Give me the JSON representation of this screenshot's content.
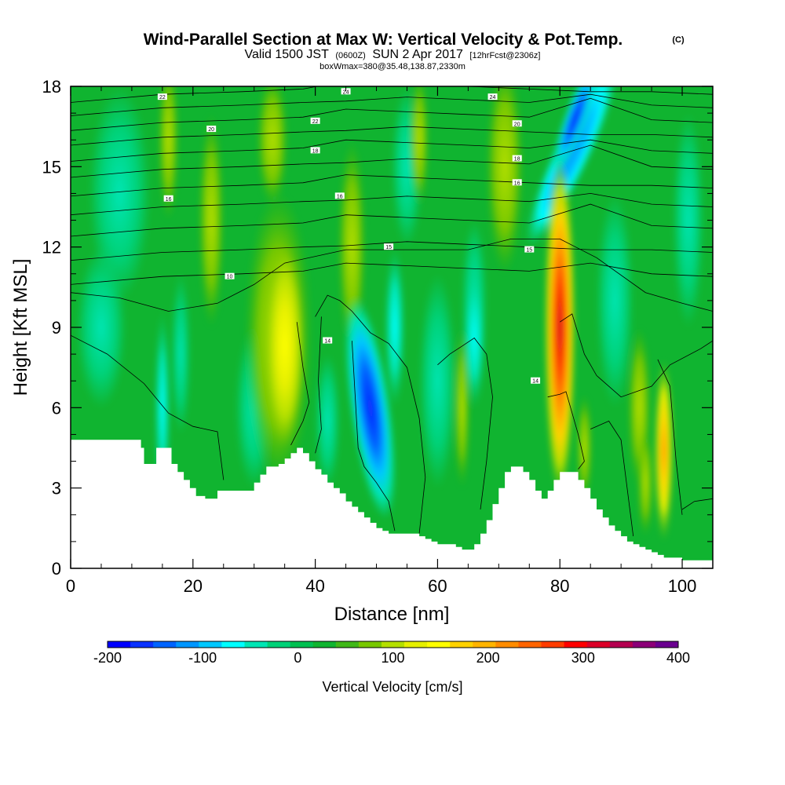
{
  "title": {
    "main": "Wind-Parallel Section at Max W: Vertical Velocity & Pot.Temp.",
    "main_suffix": "(C)",
    "line2_a": "Valid 1500 JST",
    "line2_b": "(0600Z)",
    "line2_c": "SUN 2 Apr 2017",
    "line2_d": "[12hrFcst@2306z]",
    "line3": "boxWmax=380@35.48,138.87,2330m"
  },
  "chart_data": {
    "type": "heatmap",
    "title": "Wind-Parallel Section at Max W: Vertical Velocity & Pot.Temp.",
    "xlabel": "Distance [nm]",
    "ylabel": "Height [Kft MSL]",
    "xlim": [
      0,
      105
    ],
    "ylim": [
      0,
      18
    ],
    "xticks": [
      0,
      20,
      40,
      60,
      80,
      100
    ],
    "xtick_labels": [
      "0",
      "20",
      "40",
      "60",
      "80",
      "100"
    ],
    "yticks": [
      0,
      3,
      6,
      9,
      12,
      15,
      18
    ],
    "ytick_labels": [
      "0",
      "3",
      "6",
      "9",
      "12",
      "15",
      "18"
    ],
    "colorbar": {
      "title": "Vertical Velocity [cm/s]",
      "min": -200,
      "max": 400,
      "tick_values": [
        -200,
        -100,
        0,
        100,
        200,
        300,
        400
      ],
      "tick_labels": [
        "-200",
        "-100",
        "0",
        "100",
        "200",
        "300",
        "400"
      ],
      "colors": [
        "#0000ff",
        "#0a32ff",
        "#0064ff",
        "#0096ff",
        "#00c8ff",
        "#00ffff",
        "#00e6b4",
        "#00d278",
        "#00c050",
        "#10b430",
        "#40b818",
        "#78c800",
        "#b4e000",
        "#e6f000",
        "#ffff00",
        "#ffd200",
        "#ffb400",
        "#ff8c00",
        "#ff6400",
        "#ff3c00",
        "#ff0000",
        "#dc0028",
        "#b40050",
        "#8c0078",
        "#6a0090"
      ]
    },
    "extrema": [
      {
        "sign": "min",
        "x": 49,
        "y": 5.5,
        "value": -190
      },
      {
        "sign": "max",
        "x": 80,
        "y": 9.5,
        "value": 330
      },
      {
        "sign": "max",
        "x": 35,
        "y": 8.3,
        "value": 110
      },
      {
        "sign": "max",
        "x": 97,
        "y": 4.3,
        "value": 210
      },
      {
        "sign": "min",
        "x": 82,
        "y": 16.5,
        "value": -110
      },
      {
        "sign": "min",
        "x": 15,
        "y": 5.7,
        "value": -70
      }
    ],
    "terrain": {
      "x": [
        0,
        11,
        11.5,
        12,
        13.5,
        14,
        15.5,
        16.5,
        17.5,
        18.5,
        19.5,
        20.5,
        22,
        24,
        26,
        29,
        30,
        31,
        32,
        34,
        35,
        36,
        37,
        38,
        39,
        40,
        41,
        42,
        43,
        44,
        45,
        46,
        47,
        48,
        49,
        50,
        51,
        52,
        53,
        54,
        55,
        56,
        57,
        58,
        59,
        60,
        61,
        62,
        63,
        64,
        65,
        66,
        67,
        68,
        69,
        70,
        71,
        72,
        73,
        74,
        75,
        76,
        77,
        78,
        79,
        80,
        81,
        82,
        83,
        84,
        85,
        86,
        87,
        88,
        89,
        90,
        91,
        92,
        93,
        94,
        95,
        96,
        97,
        98,
        99,
        100,
        101,
        102,
        103,
        104,
        105
      ],
      "y": [
        4.8,
        4.8,
        4.5,
        3.9,
        3.9,
        4.5,
        4.5,
        3.9,
        3.6,
        3.3,
        3.0,
        2.7,
        2.6,
        2.9,
        2.9,
        2.9,
        3.2,
        3.5,
        3.8,
        3.9,
        4.1,
        4.3,
        4.5,
        4.3,
        4.0,
        3.7,
        3.5,
        3.2,
        3.0,
        2.8,
        2.5,
        2.3,
        2.1,
        1.9,
        1.7,
        1.5,
        1.4,
        1.3,
        1.3,
        1.3,
        1.3,
        1.3,
        1.2,
        1.1,
        1.0,
        0.9,
        0.9,
        0.9,
        0.8,
        0.7,
        0.7,
        0.9,
        1.3,
        1.8,
        2.4,
        3.0,
        3.6,
        3.8,
        3.8,
        3.6,
        3.3,
        2.9,
        2.6,
        2.9,
        3.3,
        3.6,
        3.6,
        3.6,
        3.3,
        3.0,
        2.6,
        2.2,
        1.9,
        1.6,
        1.4,
        1.2,
        1.0,
        0.9,
        0.8,
        0.7,
        0.6,
        0.5,
        0.4,
        0.4,
        0.4,
        0.3,
        0.3,
        0.3,
        0.3,
        0.3,
        0.3
      ]
    },
    "contour_labels": [
      {
        "text": "24",
        "x": 45,
        "y": 17.8
      },
      {
        "text": "24",
        "x": 69,
        "y": 17.6
      },
      {
        "text": "22",
        "x": 15,
        "y": 17.6
      },
      {
        "text": "22",
        "x": 40,
        "y": 16.7
      },
      {
        "text": "20",
        "x": 23,
        "y": 16.4
      },
      {
        "text": "20",
        "x": 73,
        "y": 16.6
      },
      {
        "text": "18",
        "x": 40,
        "y": 15.6
      },
      {
        "text": "18",
        "x": 73,
        "y": 15.3
      },
      {
        "text": "16",
        "x": 16,
        "y": 13.8
      },
      {
        "text": "16",
        "x": 44,
        "y": 13.9
      },
      {
        "text": "16",
        "x": 73,
        "y": 14.4
      },
      {
        "text": "15",
        "x": 52,
        "y": 12.0
      },
      {
        "text": "15",
        "x": 75,
        "y": 11.9
      },
      {
        "text": "10",
        "x": 26,
        "y": 10.9
      },
      {
        "text": "14",
        "x": 42,
        "y": 8.5
      },
      {
        "text": "14",
        "x": 76,
        "y": 7.0
      }
    ]
  }
}
